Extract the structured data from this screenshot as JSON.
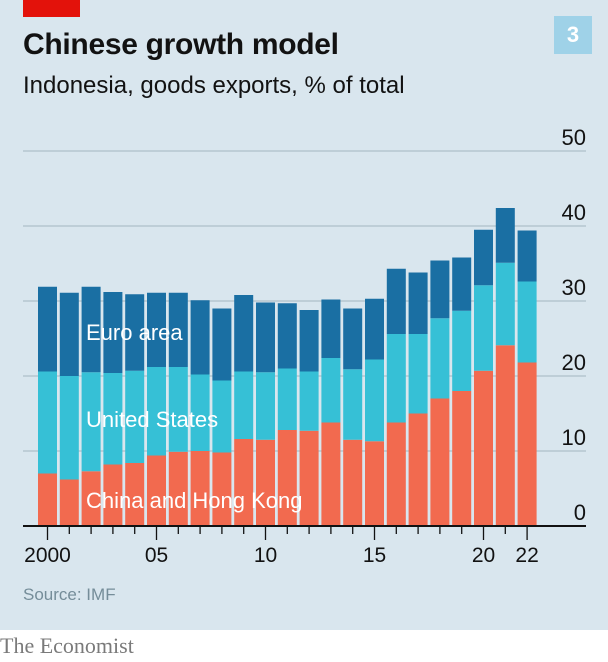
{
  "header": {
    "title": "Chinese growth model",
    "subtitle": "Indonesia, goods exports, % of total",
    "chart_number": "3"
  },
  "footer": {
    "source": "Source: IMF",
    "brand": "The Economist"
  },
  "colors": {
    "background": "#d9e6ee",
    "china_hk": "#f26a4f",
    "united_states": "#36c0d6",
    "euro_area": "#1a6fa3",
    "brand_red": "#e3120b",
    "gridline": "#b5c6cf",
    "axis": "#121212"
  },
  "chart_data": {
    "type": "bar",
    "stacked": true,
    "title": "Chinese growth model",
    "subtitle": "Indonesia, goods exports, % of total",
    "x": [
      2000,
      2001,
      2002,
      2003,
      2004,
      2005,
      2006,
      2007,
      2008,
      2009,
      2010,
      2011,
      2012,
      2013,
      2014,
      2015,
      2016,
      2017,
      2018,
      2019,
      2020,
      2021,
      2022
    ],
    "x_tick_labels": [
      {
        "x": 2000,
        "label": "2000"
      },
      {
        "x": 2005,
        "label": "05"
      },
      {
        "x": 2010,
        "label": "10"
      },
      {
        "x": 2015,
        "label": "15"
      },
      {
        "x": 2020,
        "label": "20"
      },
      {
        "x": 2022,
        "label": "22"
      }
    ],
    "ylim": [
      0,
      50
    ],
    "y_ticks": [
      0,
      10,
      20,
      30,
      40,
      50
    ],
    "y_axis_position": "right",
    "grid": true,
    "series": [
      {
        "name": "China and Hong Kong",
        "color": "#f26a4f",
        "values": [
          7.0,
          6.2,
          7.3,
          8.2,
          8.4,
          9.4,
          9.9,
          10.0,
          9.8,
          11.6,
          11.5,
          12.8,
          12.7,
          13.8,
          11.5,
          11.3,
          13.8,
          15.0,
          17.0,
          18.0,
          20.7,
          24.1,
          21.8
        ]
      },
      {
        "name": "United States",
        "color": "#36c0d6",
        "values": [
          13.6,
          13.8,
          13.2,
          12.2,
          12.3,
          11.8,
          11.3,
          10.2,
          9.6,
          9.0,
          9.0,
          8.2,
          7.9,
          8.6,
          9.4,
          10.9,
          11.8,
          10.6,
          10.7,
          10.7,
          11.4,
          11.0,
          10.8
        ]
      },
      {
        "name": "Euro area",
        "color": "#1a6fa3",
        "values": [
          11.3,
          11.1,
          11.4,
          10.8,
          10.2,
          9.9,
          9.9,
          9.9,
          9.6,
          10.2,
          9.3,
          8.7,
          8.2,
          7.8,
          8.1,
          8.1,
          8.7,
          8.2,
          7.7,
          7.1,
          7.4,
          7.3,
          6.8
        ]
      }
    ],
    "labels": [
      {
        "series": "Euro area",
        "text": "Euro area"
      },
      {
        "series": "United States",
        "text": "United States"
      },
      {
        "series": "China and Hong Kong",
        "text": "China and Hong Kong"
      }
    ]
  }
}
